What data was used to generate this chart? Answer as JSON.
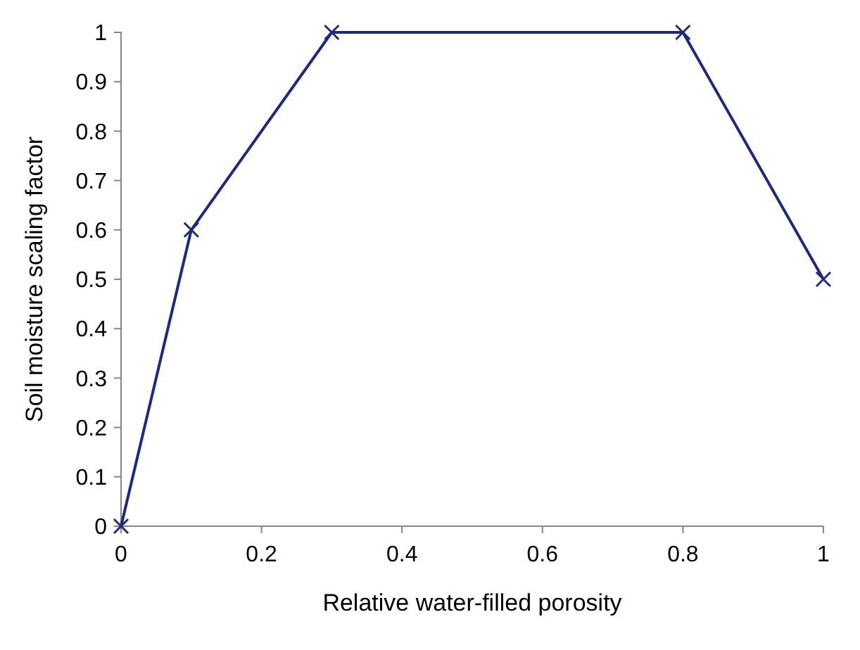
{
  "chart_data": {
    "type": "line",
    "xlabel": "Relative water-filled porosity",
    "ylabel": "Soil moisture scaling factor",
    "x": [
      0,
      0.1,
      0.3,
      0.8,
      1
    ],
    "series": [
      {
        "color": "#1f2a7a",
        "values": [
          0,
          0.6,
          1,
          1,
          0.5
        ]
      }
    ],
    "xlim": [
      0,
      1
    ],
    "xticks": [
      0,
      0.2,
      0.4,
      0.6,
      0.8,
      1
    ],
    "ylim": [
      0,
      1
    ],
    "yticks": [
      0,
      0.1,
      0.2,
      0.3,
      0.4,
      0.5,
      0.6,
      0.7,
      0.8,
      0.9,
      1
    ],
    "grid": false,
    "marker": "cross",
    "line_style": "solid"
  }
}
